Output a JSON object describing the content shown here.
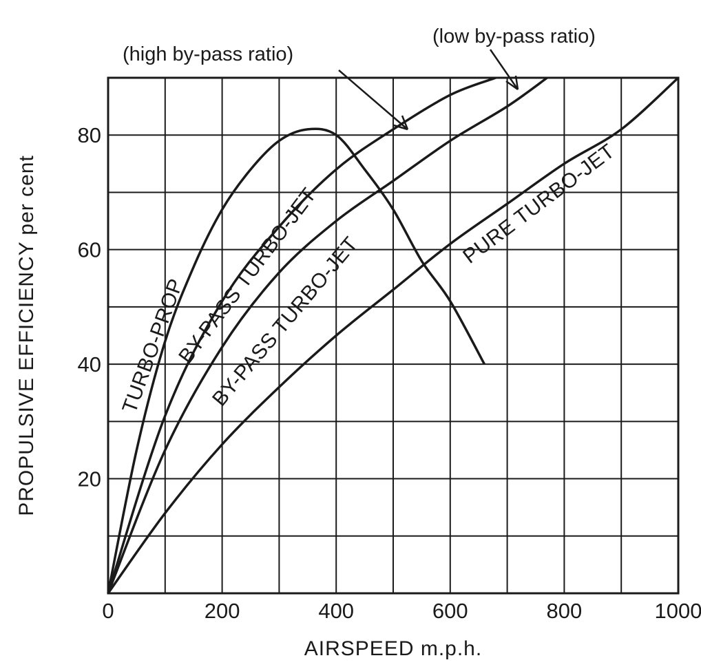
{
  "chart_data": {
    "type": "line",
    "title": "",
    "xlabel": "AIRSPEED m.p.h.",
    "ylabel": "PROPULSIVE EFFICIENCY   per cent",
    "xlim": [
      0,
      1000
    ],
    "ylim": [
      0,
      90
    ],
    "x_ticks": [
      "0",
      "200",
      "400",
      "600",
      "800",
      "1000"
    ],
    "y_ticks": [
      "20",
      "40",
      "60",
      "80"
    ],
    "grid": true,
    "colors": {
      "ink": "#1a1a1a",
      "background": "#ffffff"
    },
    "series": [
      {
        "name": "TURBO-PROP",
        "x": [
          0,
          50,
          100,
          150,
          200,
          250,
          300,
          350,
          400,
          450,
          500,
          550,
          600,
          660
        ],
        "y": [
          0,
          25,
          44,
          57,
          67,
          74,
          79,
          81,
          80,
          74,
          67,
          58,
          51,
          40
        ]
      },
      {
        "name": "BY-PASS TURBO-JET",
        "note": "(high by-pass ratio)",
        "x": [
          0,
          100,
          200,
          300,
          400,
          500,
          600,
          680
        ],
        "y": [
          0,
          31,
          51,
          64,
          74,
          81,
          87,
          90
        ]
      },
      {
        "name": "BY-PASS TURBO-JET",
        "note": "(low by-pass ratio)",
        "x": [
          0,
          100,
          200,
          300,
          400,
          500,
          600,
          700,
          770
        ],
        "y": [
          0,
          25,
          43,
          56,
          65,
          72,
          79,
          85,
          90
        ]
      },
      {
        "name": "PURE TURBO-JET",
        "x": [
          0,
          100,
          200,
          300,
          400,
          500,
          600,
          700,
          800,
          900,
          1000
        ],
        "y": [
          0,
          14,
          26,
          36,
          45,
          53,
          61,
          68,
          75,
          81,
          90
        ]
      }
    ],
    "annotations": [
      "(high by-pass ratio)",
      "(low by-pass ratio)"
    ]
  }
}
